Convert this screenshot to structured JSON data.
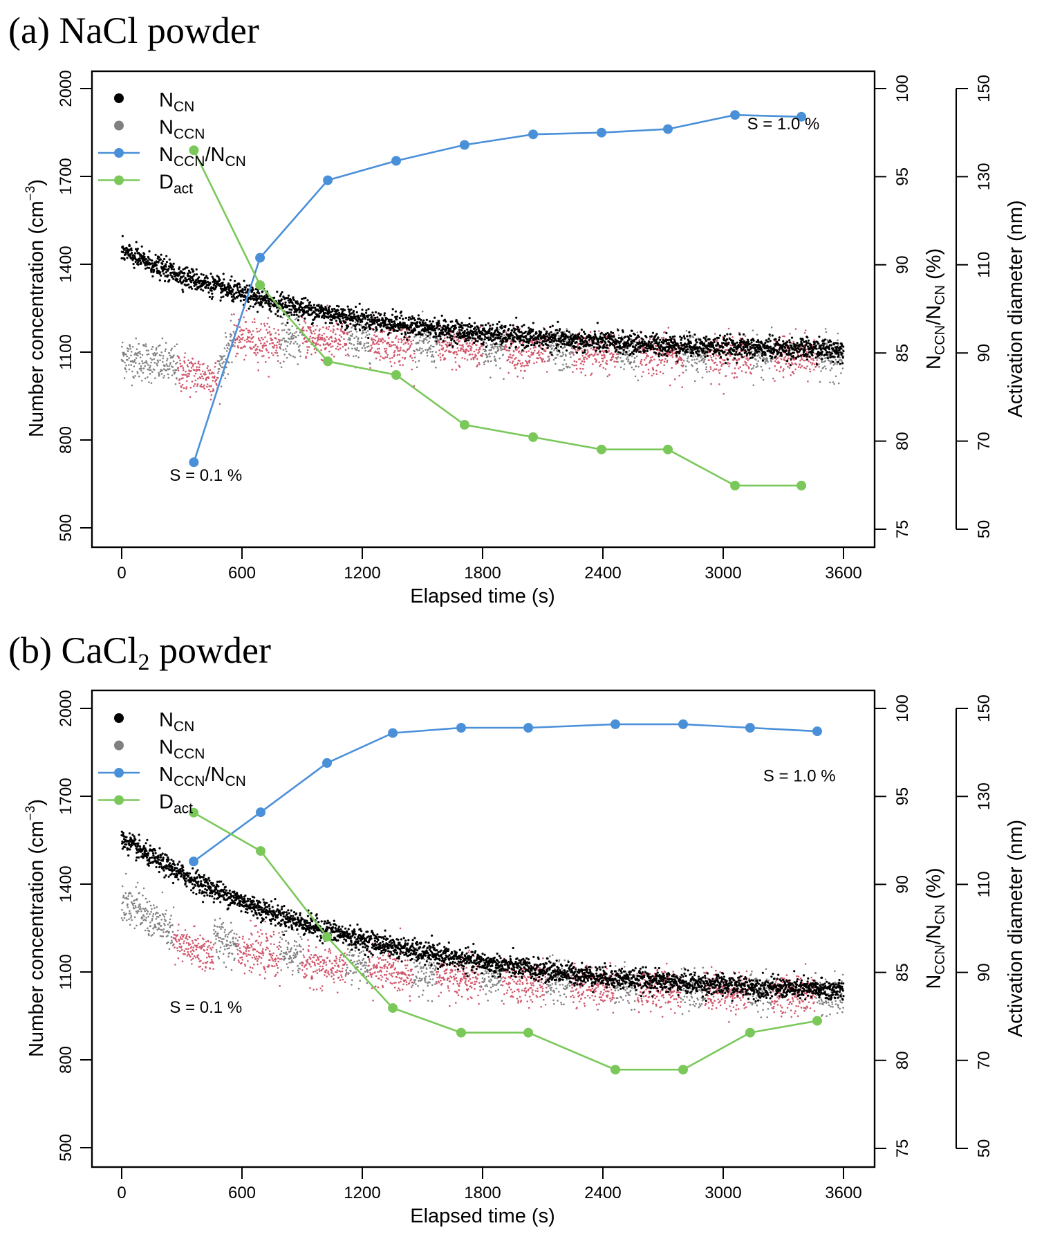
{
  "chart_data": [
    {
      "id": "a",
      "type": "scatter",
      "title_prefix": "(a)",
      "title": "NaCl powder",
      "title_subscript": "",
      "title_suffix": "",
      "xlabel": "Elapsed time (s)",
      "ylabel_main": "Number concentration (cm",
      "ylabel_sup": "−3",
      "ylabel_close": ")",
      "y2label_main": "N",
      "y2label_sub1": "CCN",
      "y2label_mid": "/N",
      "y2label_sub2": "CN",
      "y2label_end": " (%)",
      "y3label": "Activation diameter (nm)",
      "xlim": [
        -120,
        3820
      ],
      "xticks": [
        0,
        600,
        1200,
        1800,
        2400,
        3000,
        3600
      ],
      "ylim": [
        500,
        2000
      ],
      "yticks": [
        500,
        800,
        1100,
        1400,
        1700,
        2000
      ],
      "y2lim": [
        75,
        100
      ],
      "y2ticks": [
        75,
        80,
        85,
        90,
        95,
        100
      ],
      "y3lim": [
        50,
        150
      ],
      "y3ticks": [
        50,
        70,
        90,
        110,
        130,
        150
      ],
      "legend": {
        "position": "top-left",
        "entries": [
          {
            "main": "N",
            "sub": "CN",
            "tail": "",
            "sub2": "",
            "color": "#000000",
            "kind": "point"
          },
          {
            "main": "N",
            "sub": "CCN",
            "tail": "",
            "sub2": "",
            "color": "#808080",
            "kind": "point"
          },
          {
            "main": "N",
            "sub": "CCN",
            "tail": "/N",
            "sub2": "CN",
            "color": "#4a90d9",
            "kind": "line-point"
          },
          {
            "main": "D",
            "sub": "act",
            "tail": "",
            "sub2": "",
            "color": "#7ac85a",
            "kind": "line-point"
          }
        ]
      },
      "annotations": [
        {
          "text": "S = 0.1 %",
          "x": 420,
          "y": 680
        },
        {
          "text": "S = 1.0 %",
          "x": 3300,
          "y": 1880
        }
      ],
      "series": [
        {
          "name": "NCCN/NCN",
          "axis": "y2",
          "color": "#4a90d9",
          "x": [
            360,
            690,
            1028,
            1369,
            1710,
            2052,
            2393,
            2724,
            3059,
            3390
          ],
          "values": [
            78.8,
            90.4,
            94.8,
            95.9,
            96.8,
            97.4,
            97.5,
            97.7,
            98.5,
            98.4
          ]
        },
        {
          "name": "Dact",
          "axis": "y3",
          "color": "#7ac85a",
          "x": [
            360,
            690,
            1028,
            1369,
            1710,
            2052,
            2393,
            2724,
            3059,
            3390
          ],
          "values": [
            136.0,
            105.4,
            88.1,
            85.0,
            73.7,
            70.9,
            68.1,
            68.1,
            59.9,
            59.9
          ]
        }
      ],
      "scatter": {
        "ncn": {
          "name": "NCN",
          "color": "#000000",
          "start": 1445,
          "end": 1095,
          "tau": 1100,
          "noise": 18
        },
        "nccn": {
          "name": "NCCN",
          "gray_color": "#808080",
          "red_color": "#d0566b",
          "segments": [
            {
              "t0": 0,
              "t1": 280,
              "v0": 1085,
              "v1": 1050,
              "state": "gray"
            },
            {
              "t0": 280,
              "t1": 480,
              "v0": 1035,
              "v1": 1010,
              "state": "red"
            },
            {
              "t0": 480,
              "t1": 560,
              "v0": 1030,
              "v1": 1150,
              "state": "gray"
            },
            {
              "t0": 560,
              "t1": 790,
              "v0": 1150,
              "v1": 1130,
              "state": "red"
            },
            {
              "t0": 790,
              "t1": 900,
              "v0": 1140,
              "v1": 1150,
              "state": "gray"
            },
            {
              "t0": 900,
              "t1": 1130,
              "v0": 1150,
              "v1": 1140,
              "state": "red"
            },
            {
              "t0": 1130,
              "t1": 1240,
              "v0": 1140,
              "v1": 1140,
              "state": "gray"
            },
            {
              "t0": 1240,
              "t1": 1460,
              "v0": 1135,
              "v1": 1125,
              "state": "red"
            },
            {
              "t0": 1460,
              "t1": 1580,
              "v0": 1130,
              "v1": 1125,
              "state": "gray"
            },
            {
              "t0": 1580,
              "t1": 1800,
              "v0": 1115,
              "v1": 1110,
              "state": "red"
            },
            {
              "t0": 1800,
              "t1": 1910,
              "v0": 1115,
              "v1": 1110,
              "state": "gray"
            },
            {
              "t0": 1910,
              "t1": 2130,
              "v0": 1105,
              "v1": 1100,
              "state": "red"
            },
            {
              "t0": 2130,
              "t1": 2250,
              "v0": 1105,
              "v1": 1100,
              "state": "gray"
            },
            {
              "t0": 2250,
              "t1": 2470,
              "v0": 1100,
              "v1": 1095,
              "state": "red"
            },
            {
              "t0": 2470,
              "t1": 2580,
              "v0": 1100,
              "v1": 1095,
              "state": "gray"
            },
            {
              "t0": 2580,
              "t1": 2800,
              "v0": 1095,
              "v1": 1090,
              "state": "red"
            },
            {
              "t0": 2800,
              "t1": 2920,
              "v0": 1095,
              "v1": 1090,
              "state": "gray"
            },
            {
              "t0": 2920,
              "t1": 3140,
              "v0": 1090,
              "v1": 1088,
              "state": "red"
            },
            {
              "t0": 3140,
              "t1": 3250,
              "v0": 1090,
              "v1": 1088,
              "state": "gray"
            },
            {
              "t0": 3250,
              "t1": 3470,
              "v0": 1085,
              "v1": 1083,
              "state": "red"
            },
            {
              "t0": 3470,
              "t1": 3600,
              "v0": 1085,
              "v1": 1083,
              "state": "gray"
            }
          ],
          "noise": 35
        }
      }
    },
    {
      "id": "b",
      "type": "scatter",
      "title_prefix": "(b)",
      "title": "CaCl",
      "title_subscript": "2",
      "title_suffix": " powder",
      "xlabel": "Elapsed time (s)",
      "ylabel_main": "Number concentration (cm",
      "ylabel_sup": "−3",
      "ylabel_close": ")",
      "y2label_main": "N",
      "y2label_sub1": "CCN",
      "y2label_mid": "/N",
      "y2label_sub2": "CN",
      "y2label_end": " (%)",
      "y3label": "Activation diameter (nm)",
      "xlim": [
        -120,
        3820
      ],
      "xticks": [
        0,
        600,
        1200,
        1800,
        2400,
        3000,
        3600
      ],
      "ylim": [
        500,
        2000
      ],
      "yticks": [
        500,
        800,
        1100,
        1400,
        1700,
        2000
      ],
      "y2lim": [
        75,
        100
      ],
      "y2ticks": [
        75,
        80,
        85,
        90,
        95,
        100
      ],
      "y3lim": [
        50,
        150
      ],
      "y3ticks": [
        50,
        70,
        90,
        110,
        130,
        150
      ],
      "legend": {
        "position": "top-left",
        "entries": [
          {
            "main": "N",
            "sub": "CN",
            "tail": "",
            "sub2": "",
            "color": "#000000",
            "kind": "point"
          },
          {
            "main": "N",
            "sub": "CCN",
            "tail": "",
            "sub2": "",
            "color": "#808080",
            "kind": "point"
          },
          {
            "main": "N",
            "sub": "CCN",
            "tail": "/N",
            "sub2": "CN",
            "color": "#4a90d9",
            "kind": "line-point"
          },
          {
            "main": "D",
            "sub": "act",
            "tail": "",
            "sub2": "",
            "color": "#7ac85a",
            "kind": "line-point"
          }
        ]
      },
      "annotations": [
        {
          "text": "S = 0.1 %",
          "x": 420,
          "y": 980
        },
        {
          "text": "S = 1.0 %",
          "x": 3380,
          "y": 1770
        }
      ],
      "series": [
        {
          "name": "NCCN/NCN",
          "axis": "y2",
          "color": "#4a90d9",
          "x": [
            359,
            693,
            1024,
            1352,
            1693,
            2028,
            2462,
            2800,
            3134,
            3469
          ],
          "values": [
            91.3,
            94.1,
            96.9,
            98.6,
            98.9,
            98.9,
            99.1,
            99.1,
            98.9,
            98.7
          ]
        },
        {
          "name": "Dact",
          "axis": "y3",
          "color": "#7ac85a",
          "x": [
            359,
            693,
            1024,
            1352,
            1693,
            2028,
            2462,
            2800,
            3134,
            3469
          ],
          "values": [
            126.3,
            117.6,
            98.1,
            81.9,
            76.3,
            76.3,
            67.9,
            67.9,
            76.3,
            79.0
          ]
        }
      ],
      "scatter": {
        "ncn": {
          "name": "NCN",
          "color": "#000000",
          "start": 1555,
          "end": 1010,
          "tau": 1200,
          "noise": 18
        },
        "nccn": {
          "name": "NCCN",
          "gray_color": "#808080",
          "red_color": "#d0566b",
          "segments": [
            {
              "t0": 0,
              "t1": 260,
              "v0": 1350,
              "v1": 1230,
              "state": "gray"
            },
            {
              "t0": 260,
              "t1": 460,
              "v0": 1195,
              "v1": 1160,
              "state": "red"
            },
            {
              "t0": 460,
              "t1": 580,
              "v0": 1210,
              "v1": 1200,
              "state": "gray"
            },
            {
              "t0": 580,
              "t1": 790,
              "v0": 1180,
              "v1": 1150,
              "state": "red"
            },
            {
              "t0": 790,
              "t1": 900,
              "v0": 1170,
              "v1": 1160,
              "state": "gray"
            },
            {
              "t0": 900,
              "t1": 1120,
              "v0": 1130,
              "v1": 1110,
              "state": "red"
            },
            {
              "t0": 1120,
              "t1": 1230,
              "v0": 1130,
              "v1": 1120,
              "state": "gray"
            },
            {
              "t0": 1230,
              "t1": 1450,
              "v0": 1110,
              "v1": 1095,
              "state": "red"
            },
            {
              "t0": 1450,
              "t1": 1570,
              "v0": 1105,
              "v1": 1095,
              "state": "gray"
            },
            {
              "t0": 1570,
              "t1": 1790,
              "v0": 1085,
              "v1": 1075,
              "state": "red"
            },
            {
              "t0": 1790,
              "t1": 1900,
              "v0": 1085,
              "v1": 1075,
              "state": "gray"
            },
            {
              "t0": 1900,
              "t1": 2120,
              "v0": 1065,
              "v1": 1060,
              "state": "red"
            },
            {
              "t0": 2120,
              "t1": 2240,
              "v0": 1070,
              "v1": 1060,
              "state": "gray"
            },
            {
              "t0": 2240,
              "t1": 2460,
              "v0": 1055,
              "v1": 1050,
              "state": "red"
            },
            {
              "t0": 2460,
              "t1": 2570,
              "v0": 1055,
              "v1": 1045,
              "state": "gray"
            },
            {
              "t0": 2570,
              "t1": 2790,
              "v0": 1045,
              "v1": 1040,
              "state": "red"
            },
            {
              "t0": 2790,
              "t1": 2910,
              "v0": 1045,
              "v1": 1035,
              "state": "gray"
            },
            {
              "t0": 2910,
              "t1": 3130,
              "v0": 1035,
              "v1": 1030,
              "state": "red"
            },
            {
              "t0": 3130,
              "t1": 3240,
              "v0": 1035,
              "v1": 1025,
              "state": "gray"
            },
            {
              "t0": 3240,
              "t1": 3460,
              "v0": 1025,
              "v1": 1020,
              "state": "red"
            },
            {
              "t0": 3460,
              "t1": 3600,
              "v0": 1025,
              "v1": 1015,
              "state": "gray"
            }
          ],
          "noise": 35
        }
      }
    }
  ]
}
